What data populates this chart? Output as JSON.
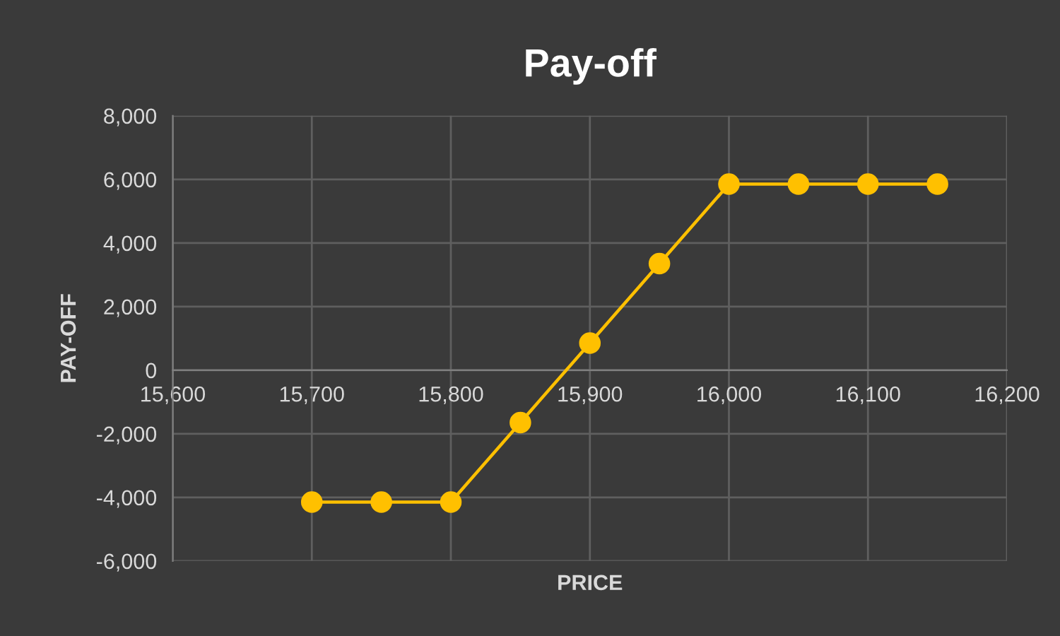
{
  "chart_data": {
    "type": "line",
    "title": "Pay-off",
    "xlabel": "PRICE",
    "ylabel": "PAY-OFF",
    "x": [
      15700,
      15750,
      15800,
      15850,
      15900,
      15950,
      16000,
      16050,
      16100,
      16150
    ],
    "series": [
      {
        "color": "#ffc000",
        "values": [
          -4150,
          -4150,
          -4150,
          -1650,
          850,
          3350,
          5850,
          5850,
          5850,
          5850
        ]
      }
    ],
    "xlim": [
      15600,
      16200
    ],
    "xticks": [
      {
        "value": 15600,
        "label": "15,600"
      },
      {
        "value": 15700,
        "label": "15,700"
      },
      {
        "value": 15800,
        "label": "15,800"
      },
      {
        "value": 15900,
        "label": "15,900"
      },
      {
        "value": 16000,
        "label": "16,000"
      },
      {
        "value": 16100,
        "label": "16,100"
      },
      {
        "value": 16200,
        "label": "16,200"
      }
    ],
    "ylim": [
      -6000,
      8000
    ],
    "yticks": [
      {
        "value": -6000,
        "label": "-6,000"
      },
      {
        "value": -4000,
        "label": "-4,000"
      },
      {
        "value": -2000,
        "label": "-2,000"
      },
      0,
      {
        "value": 2000,
        "label": "2,000"
      },
      {
        "value": 4000,
        "label": "4,000"
      },
      {
        "value": 6000,
        "label": "6,000"
      },
      {
        "value": 8000,
        "label": "8,000"
      }
    ],
    "grid": true,
    "marker": "circle",
    "line_style": "solid"
  }
}
